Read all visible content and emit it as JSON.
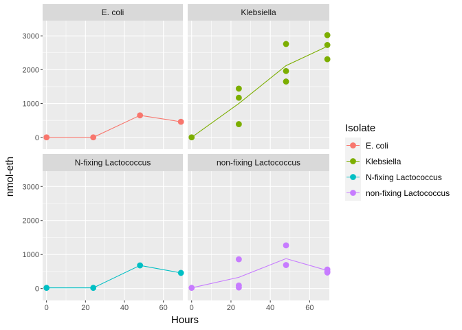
{
  "chart_data": {
    "type": "scatter",
    "xlabel": "Hours",
    "ylabel": "nmol-eth",
    "xlim": [
      -2,
      70
    ],
    "ylim": [
      -350,
      3450
    ],
    "x_ticks": [
      0,
      20,
      40,
      60
    ],
    "y_ticks": [
      0,
      1000,
      2000,
      3000
    ],
    "legend": {
      "title": "Isolate",
      "position": "right"
    },
    "panel_background": "#EBEBEB",
    "strip_background": "#D9D9D9",
    "grid": true,
    "series": [
      {
        "name": "E. coli",
        "color": "#F8766D",
        "points": [
          [
            0,
            0
          ],
          [
            24,
            0
          ],
          [
            48,
            650
          ],
          [
            69,
            460
          ]
        ],
        "line": [
          [
            0,
            0
          ],
          [
            24,
            0
          ],
          [
            48,
            650
          ],
          [
            69,
            460
          ]
        ]
      },
      {
        "name": "Klebsiella",
        "color": "#7CAE00",
        "points": [
          [
            0,
            0
          ],
          [
            24,
            1440
          ],
          [
            24,
            1170
          ],
          [
            24,
            390
          ],
          [
            48,
            2760
          ],
          [
            48,
            1960
          ],
          [
            48,
            1650
          ],
          [
            69,
            3020
          ],
          [
            69,
            2730
          ],
          [
            69,
            2310
          ]
        ],
        "line": [
          [
            0,
            0
          ],
          [
            24,
            1000
          ],
          [
            48,
            2120
          ],
          [
            69,
            2690
          ]
        ]
      },
      {
        "name": "N-fixing Lactococcus",
        "color": "#00BFC4",
        "points": [
          [
            0,
            20
          ],
          [
            24,
            20
          ],
          [
            48,
            680
          ],
          [
            69,
            460
          ]
        ],
        "line": [
          [
            0,
            20
          ],
          [
            24,
            20
          ],
          [
            48,
            680
          ],
          [
            69,
            460
          ]
        ]
      },
      {
        "name": "non-fixing Lactococcus",
        "color": "#C77CFF",
        "points": [
          [
            0,
            20
          ],
          [
            24,
            860
          ],
          [
            24,
            90
          ],
          [
            24,
            30
          ],
          [
            48,
            1270
          ],
          [
            48,
            690
          ],
          [
            69,
            560
          ],
          [
            69,
            500
          ],
          [
            69,
            470
          ]
        ],
        "line": [
          [
            0,
            20
          ],
          [
            24,
            330
          ],
          [
            48,
            880
          ],
          [
            69,
            530
          ]
        ]
      }
    ]
  }
}
